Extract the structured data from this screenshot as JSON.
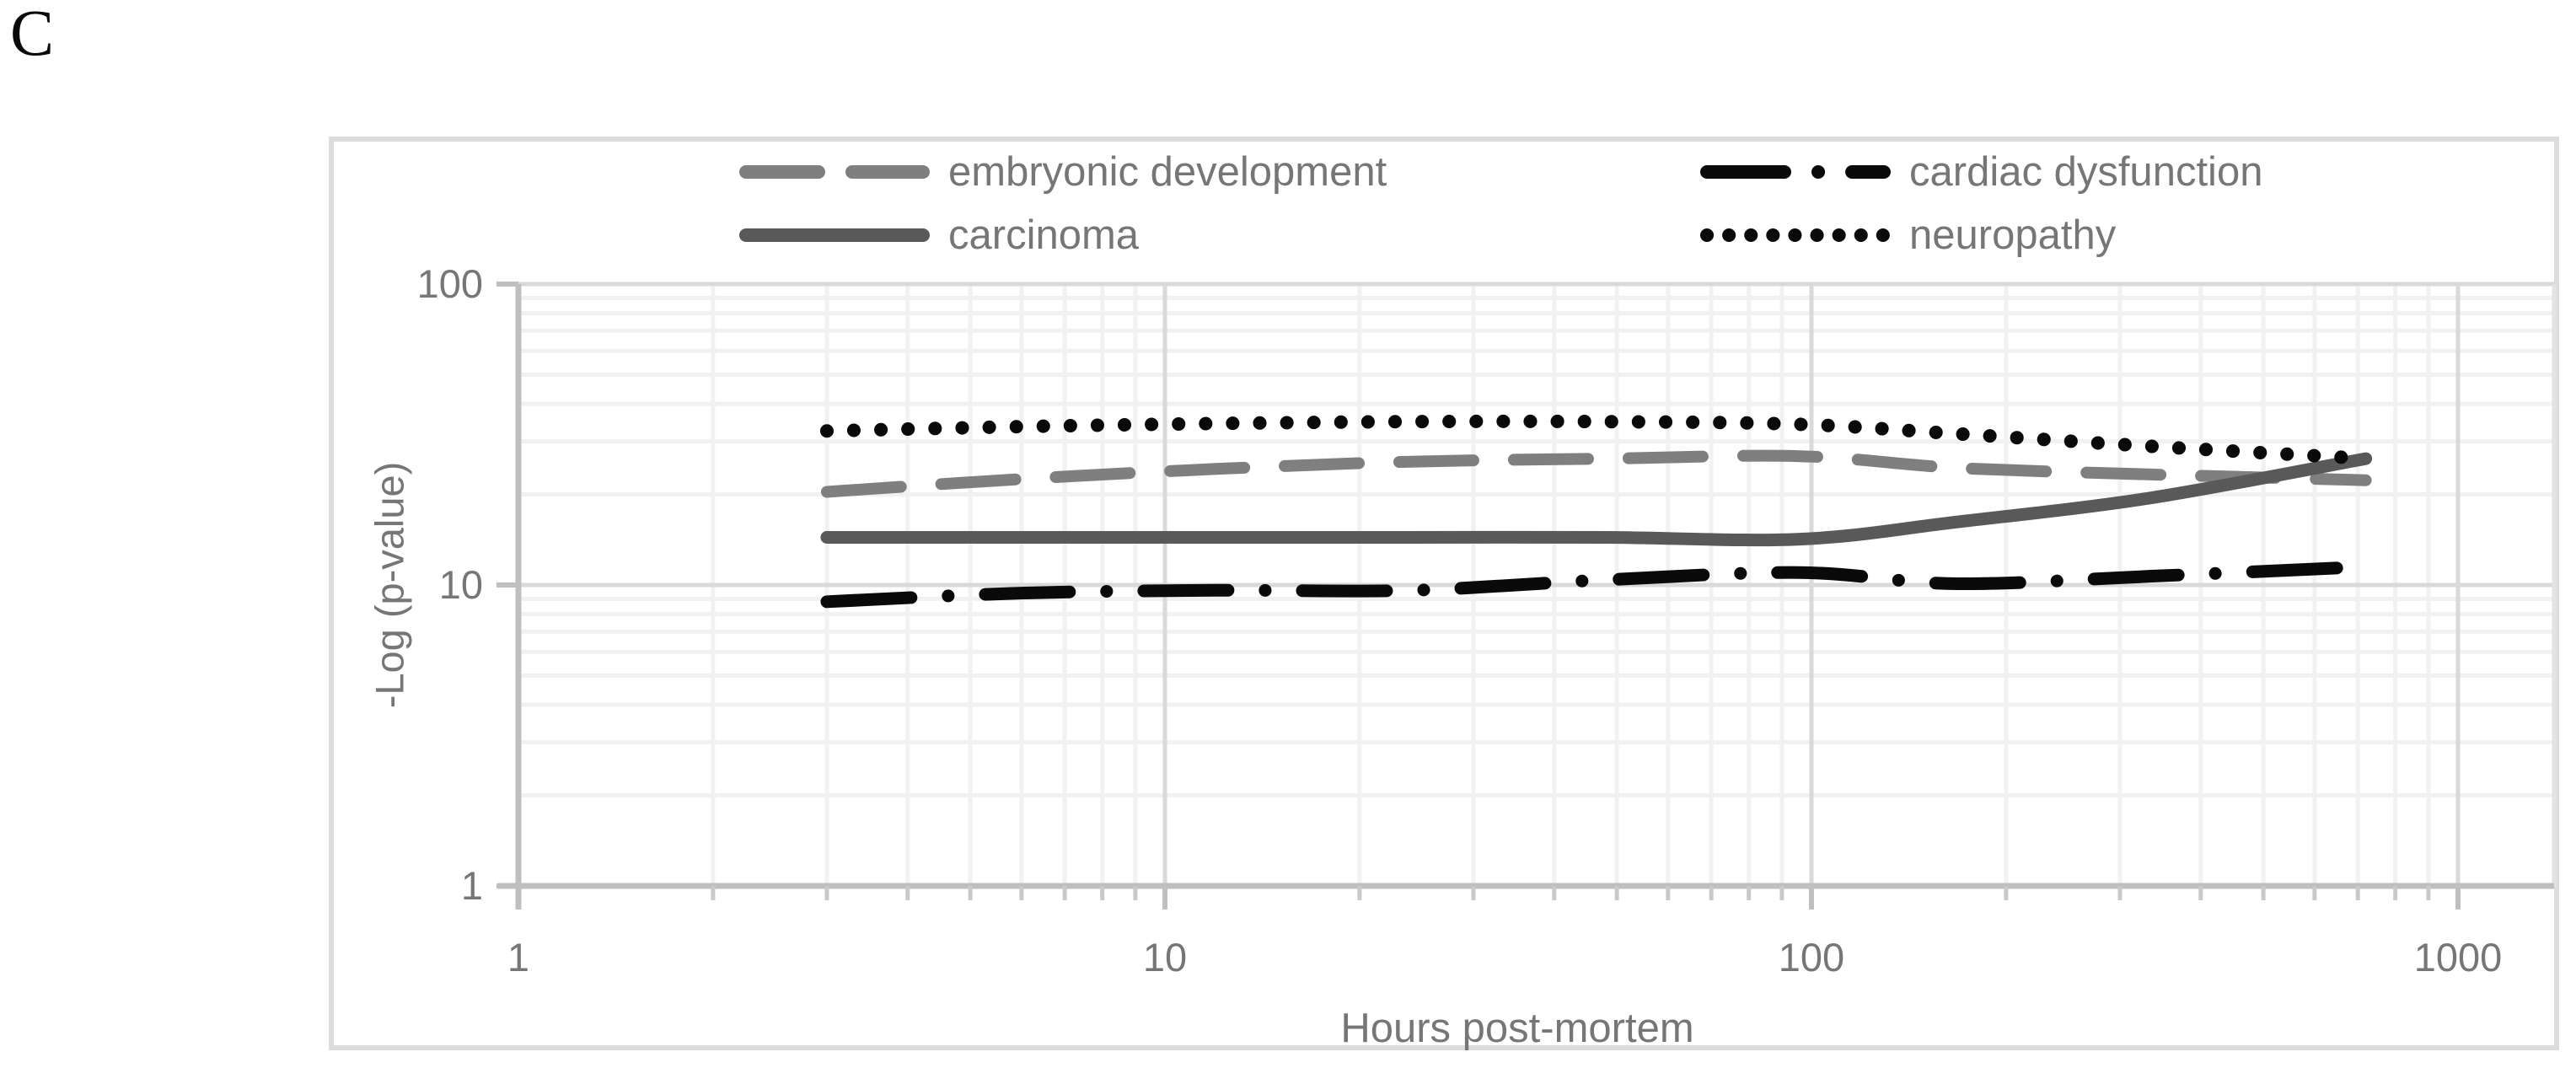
{
  "panel_label": "C",
  "colors": {
    "background": "#ffffff",
    "frame_border": "#dcdcdc",
    "grid_minor": "#f1f1f1",
    "grid_major": "#d9d9d9",
    "plot_right_border": "#e3e3e3",
    "axis_line": "#bfbfbf",
    "minor_tick": "#c9c9c9",
    "text": "#767676",
    "series_embryonic": "#7f7f7f",
    "series_carcinoma": "#595959",
    "series_black": "#0a0a0a"
  },
  "chart_data": {
    "type": "line",
    "x_scale": "log",
    "y_scale": "log",
    "title": "",
    "xlabel": "Hours post-mortem",
    "ylabel": "-Log (p-value)",
    "xlim": [
      1,
      1400
    ],
    "ylim": [
      1,
      100
    ],
    "x_ticks": [
      "1",
      "10",
      "100",
      "1000"
    ],
    "y_ticks": [
      "100",
      "10",
      "1"
    ],
    "grid": "major+minor log gridlines",
    "legend_position": "top inside chart, two columns",
    "x": [
      3,
      6,
      12,
      24,
      48,
      96,
      168,
      336,
      720
    ],
    "series": [
      {
        "name": "embryonic development",
        "style": "dashed",
        "color": "#7f7f7f",
        "values": [
          20.4,
          22.5,
          24.3,
          25.7,
          26.3,
          26.8,
          24.5,
          23.3,
          22.3
        ]
      },
      {
        "name": "carcinoma",
        "style": "solid",
        "color": "#595959",
        "values": [
          14.4,
          14.4,
          14.4,
          14.4,
          14.4,
          14.2,
          16.2,
          19.5,
          26.3
        ]
      },
      {
        "name": "cardiac dysfunction",
        "style": "dash-dot",
        "color": "#0a0a0a",
        "values": [
          8.8,
          9.4,
          9.6,
          9.6,
          10.4,
          11.0,
          10.1,
          10.7,
          11.5
        ]
      },
      {
        "name": "neuropathy",
        "style": "dotted",
        "color": "#0a0a0a",
        "values": [
          32.5,
          33.6,
          34.4,
          34.9,
          34.9,
          34.2,
          31.8,
          28.9,
          26.3
        ]
      }
    ]
  },
  "legend": {
    "items": [
      {
        "label": "embryonic development",
        "style": "dashed",
        "color": "#7f7f7f",
        "col": 0,
        "row": 0
      },
      {
        "label": "cardiac dysfunction",
        "style": "dash-dot",
        "color": "#0a0a0a",
        "col": 1,
        "row": 0
      },
      {
        "label": "carcinoma",
        "style": "solid",
        "color": "#595959",
        "col": 0,
        "row": 1
      },
      {
        "label": "neuropathy",
        "style": "dotted",
        "color": "#0a0a0a",
        "col": 1,
        "row": 1
      }
    ]
  }
}
